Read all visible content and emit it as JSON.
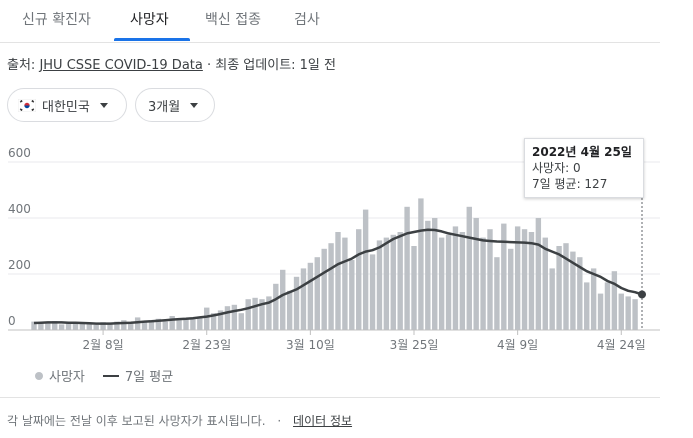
{
  "tabs": [
    {
      "label": "신규 확진자",
      "active": false
    },
    {
      "label": "사망자",
      "active": true
    },
    {
      "label": "백신 접종",
      "active": false
    },
    {
      "label": "검사",
      "active": false
    }
  ],
  "source": {
    "prefix": "출처: ",
    "link": "JHU CSSE COVID-19 Data",
    "suffix": " · 최종 업데이트: 1일 전"
  },
  "filters": {
    "country": "대한민국",
    "period": "3개월"
  },
  "tooltip": {
    "date": "2022년 4월 25일",
    "deaths": "사망자: 0",
    "avg": "7일 평균: 127"
  },
  "legend": {
    "bars": "사망자",
    "line": "7일 평균"
  },
  "footer": {
    "note": "각 날짜에는 전날 이후 보고된 사망자가 표시됩니다.",
    "sep": "·",
    "link": "데이터 정보"
  },
  "colors": {
    "bar": "#bdc1c6",
    "line": "#3c4043",
    "grid": "#e8eaed",
    "accent": "#1a73e8"
  },
  "chart_data": {
    "type": "bar",
    "overlay": "line",
    "y_ticks": [
      0,
      200,
      400,
      600
    ],
    "ylim": [
      0,
      600
    ],
    "x_tick_labels": [
      {
        "index": 10,
        "label": "2월 8일"
      },
      {
        "index": 25,
        "label": "2월 23일"
      },
      {
        "index": 40,
        "label": "3월 10일"
      },
      {
        "index": 55,
        "label": "3월 25일"
      },
      {
        "index": 70,
        "label": "4월 9일"
      },
      {
        "index": 85,
        "label": "4월 24일"
      }
    ],
    "series": [
      {
        "name": "사망자",
        "type": "bar",
        "values": [
          30,
          25,
          28,
          32,
          20,
          30,
          27,
          22,
          25,
          18,
          28,
          20,
          30,
          35,
          25,
          45,
          30,
          35,
          40,
          30,
          50,
          35,
          40,
          38,
          45,
          80,
          60,
          70,
          85,
          90,
          60,
          110,
          115,
          110,
          120,
          165,
          215,
          140,
          190,
          220,
          240,
          260,
          290,
          310,
          350,
          330,
          250,
          360,
          430,
          270,
          320,
          330,
          340,
          350,
          440,
          300,
          470,
          390,
          400,
          330,
          340,
          370,
          350,
          440,
          400,
          330,
          360,
          260,
          380,
          290,
          370,
          360,
          350,
          400,
          330,
          220,
          300,
          310,
          280,
          260,
          170,
          220,
          130,
          170,
          210,
          130,
          120,
          110,
          0
        ],
        "note": "index 88 = 2022-04-25 (0)"
      },
      {
        "name": "7일 평균",
        "type": "line",
        "values": [
          25,
          26,
          27,
          27,
          27,
          26,
          26,
          25,
          24,
          23,
          23,
          23,
          24,
          25,
          26,
          28,
          30,
          31,
          33,
          35,
          37,
          39,
          40,
          42,
          45,
          48,
          52,
          57,
          63,
          68,
          72,
          78,
          85,
          92,
          98,
          110,
          125,
          135,
          145,
          160,
          175,
          190,
          205,
          220,
          235,
          245,
          255,
          270,
          280,
          285,
          295,
          310,
          325,
          335,
          345,
          350,
          355,
          358,
          357,
          352,
          345,
          340,
          335,
          330,
          325,
          320,
          318,
          316,
          315,
          314,
          313,
          312,
          310,
          305,
          290,
          280,
          270,
          255,
          240,
          225,
          210,
          200,
          190,
          175,
          165,
          150,
          140,
          135,
          127
        ]
      }
    ]
  }
}
